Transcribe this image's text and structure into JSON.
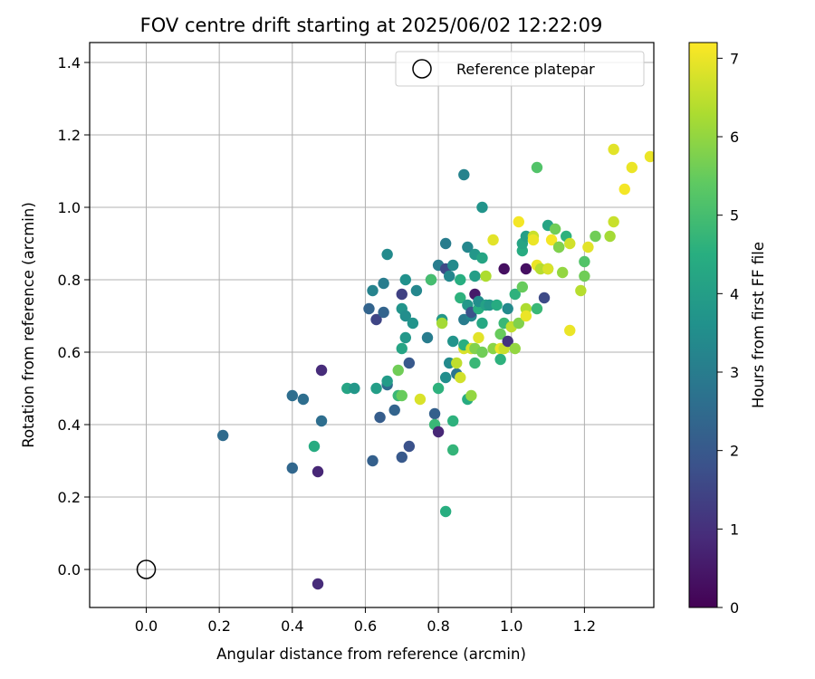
{
  "chart_data": {
    "type": "scatter",
    "title": "FOV centre drift starting at 2025/06/02 12:22:09",
    "xlabel": "Angular distance from reference (arcmin)",
    "ylabel": "Rotation from reference (arcmin)",
    "xlim": [
      -0.155,
      1.39
    ],
    "ylim": [
      -0.105,
      1.455
    ],
    "xticks": [
      "0.0",
      "0.2",
      "0.4",
      "0.6",
      "0.8",
      "1.0",
      "1.2"
    ],
    "xtick_values": [
      0,
      0.2,
      0.4,
      0.6,
      0.8,
      1.0,
      1.2
    ],
    "yticks": [
      "0.0",
      "0.2",
      "0.4",
      "0.6",
      "0.8",
      "1.0",
      "1.2",
      "1.4"
    ],
    "ytick_values": [
      0,
      0.2,
      0.4,
      0.6,
      0.8,
      1.0,
      1.2,
      1.4
    ],
    "grid": true,
    "legend": {
      "position": "top-right",
      "label": "Reference platepar"
    },
    "reference_point": {
      "x": 0.0,
      "y": 0.0
    },
    "colorbar": {
      "label": "Hours from first FF file",
      "colormap": "viridis",
      "range": [
        0,
        7.2
      ],
      "ticks": [
        "0",
        "1",
        "2",
        "3",
        "4",
        "5",
        "6",
        "7"
      ],
      "tick_values": [
        0,
        1,
        2,
        3,
        4,
        5,
        6,
        7
      ]
    },
    "points": [
      [
        0.21,
        0.37,
        2.5
      ],
      [
        0.4,
        0.48,
        2.6
      ],
      [
        0.43,
        0.47,
        2.6
      ],
      [
        0.4,
        0.28,
        2.4
      ],
      [
        0.46,
        0.34,
        4.4
      ],
      [
        0.47,
        0.27,
        0.8
      ],
      [
        0.48,
        0.55,
        0.9
      ],
      [
        0.48,
        0.41,
        2.6
      ],
      [
        0.47,
        -0.04,
        0.9
      ],
      [
        0.55,
        0.5,
        4.2
      ],
      [
        0.57,
        0.5,
        3.8
      ],
      [
        0.61,
        0.72,
        2.3
      ],
      [
        0.62,
        0.77,
        3.2
      ],
      [
        0.62,
        0.3,
        2.2
      ],
      [
        0.63,
        0.69,
        1.5
      ],
      [
        0.63,
        0.5,
        4.0
      ],
      [
        0.64,
        0.42,
        2.1
      ],
      [
        0.65,
        0.71,
        2.3
      ],
      [
        0.65,
        0.79,
        3.0
      ],
      [
        0.66,
        0.51,
        2.5
      ],
      [
        0.66,
        0.52,
        3.9
      ],
      [
        0.66,
        0.87,
        3.4
      ],
      [
        0.68,
        0.44,
        2.3
      ],
      [
        0.69,
        0.55,
        5.6
      ],
      [
        0.69,
        0.48,
        4.8
      ],
      [
        0.7,
        0.31,
        2.0
      ],
      [
        0.7,
        0.72,
        3.7
      ],
      [
        0.7,
        0.48,
        5.5
      ],
      [
        0.7,
        0.61,
        4.2
      ],
      [
        0.7,
        0.76,
        1.4
      ],
      [
        0.71,
        0.8,
        3.6
      ],
      [
        0.71,
        0.64,
        3.8
      ],
      [
        0.71,
        0.7,
        3.5
      ],
      [
        0.72,
        0.57,
        2.0
      ],
      [
        0.72,
        0.34,
        1.8
      ],
      [
        0.73,
        0.68,
        3.7
      ],
      [
        0.74,
        0.77,
        3.3
      ],
      [
        0.75,
        0.47,
        6.8
      ],
      [
        0.77,
        0.64,
        3.0
      ],
      [
        0.78,
        0.8,
        2.6
      ],
      [
        0.78,
        0.8,
        5.0
      ],
      [
        0.79,
        0.43,
        2.2
      ],
      [
        0.79,
        0.4,
        4.8
      ],
      [
        0.8,
        0.38,
        0.8
      ],
      [
        0.8,
        0.84,
        3.0
      ],
      [
        0.8,
        0.5,
        4.6
      ],
      [
        0.81,
        0.69,
        3.8
      ],
      [
        0.81,
        0.68,
        6.2
      ],
      [
        0.82,
        0.53,
        3.5
      ],
      [
        0.82,
        0.16,
        4.5
      ],
      [
        0.82,
        0.9,
        3.0
      ],
      [
        0.82,
        0.83,
        1.6
      ],
      [
        0.83,
        0.81,
        3.3
      ],
      [
        0.83,
        0.57,
        3.4
      ],
      [
        0.84,
        0.84,
        3.4
      ],
      [
        0.84,
        0.41,
        4.6
      ],
      [
        0.84,
        0.63,
        3.7
      ],
      [
        0.84,
        0.33,
        4.7
      ],
      [
        0.85,
        0.54,
        2.8
      ],
      [
        0.85,
        0.57,
        6.5
      ],
      [
        0.86,
        0.53,
        6.7
      ],
      [
        0.86,
        0.75,
        4.6
      ],
      [
        0.86,
        0.8,
        4.5
      ],
      [
        0.87,
        0.61,
        6.8
      ],
      [
        0.87,
        0.62,
        4.5
      ],
      [
        0.87,
        0.69,
        3.0
      ],
      [
        0.87,
        1.09,
        3.2
      ],
      [
        0.88,
        0.89,
        3.3
      ],
      [
        0.88,
        0.73,
        3.8
      ],
      [
        0.88,
        0.47,
        4.4
      ],
      [
        0.89,
        0.7,
        3.3
      ],
      [
        0.89,
        0.71,
        1.8
      ],
      [
        0.89,
        0.61,
        6.7
      ],
      [
        0.89,
        0.48,
        6.0
      ],
      [
        0.9,
        0.61,
        5.8
      ],
      [
        0.9,
        0.76,
        0.5
      ],
      [
        0.9,
        0.57,
        4.8
      ],
      [
        0.9,
        0.81,
        4.0
      ],
      [
        0.9,
        0.87,
        3.8
      ],
      [
        0.91,
        0.64,
        6.9
      ],
      [
        0.91,
        0.72,
        4.5
      ],
      [
        0.91,
        0.74,
        3.5
      ],
      [
        0.92,
        0.68,
        4.3
      ],
      [
        0.92,
        0.6,
        5.6
      ],
      [
        0.92,
        0.86,
        4.2
      ],
      [
        0.92,
        1.0,
        3.7
      ],
      [
        0.93,
        0.73,
        4.1
      ],
      [
        0.93,
        0.81,
        6.3
      ],
      [
        0.94,
        0.73,
        3.8
      ],
      [
        0.95,
        0.91,
        6.9
      ],
      [
        0.95,
        0.61,
        5.9
      ],
      [
        0.96,
        0.73,
        4.4
      ],
      [
        0.97,
        0.61,
        7.0
      ],
      [
        0.97,
        0.65,
        5.5
      ],
      [
        0.97,
        0.58,
        4.6
      ],
      [
        0.98,
        0.68,
        4.8
      ],
      [
        0.98,
        0.83,
        0.3
      ],
      [
        0.98,
        0.61,
        6.6
      ],
      [
        0.99,
        0.72,
        3.4
      ],
      [
        0.99,
        0.63,
        1.1
      ],
      [
        1.0,
        0.67,
        6.5
      ],
      [
        1.01,
        0.76,
        4.6
      ],
      [
        1.01,
        0.61,
        6.0
      ],
      [
        1.02,
        0.96,
        7.1
      ],
      [
        1.02,
        0.68,
        5.8
      ],
      [
        1.03,
        0.78,
        5.5
      ],
      [
        1.03,
        0.88,
        4.4
      ],
      [
        1.03,
        0.9,
        4.2
      ],
      [
        1.04,
        0.83,
        0.3
      ],
      [
        1.04,
        0.92,
        4.0
      ],
      [
        1.04,
        0.72,
        6.3
      ],
      [
        1.04,
        0.7,
        7.0
      ],
      [
        1.06,
        0.92,
        6.6
      ],
      [
        1.06,
        0.91,
        7.0
      ],
      [
        1.07,
        0.72,
        4.8
      ],
      [
        1.07,
        0.84,
        7.0
      ],
      [
        1.07,
        1.11,
        5.2
      ],
      [
        1.08,
        0.83,
        6.4
      ],
      [
        1.09,
        0.75,
        1.6
      ],
      [
        1.1,
        0.83,
        5.2
      ],
      [
        1.1,
        0.83,
        6.8
      ],
      [
        1.1,
        0.95,
        4.2
      ],
      [
        1.11,
        0.91,
        7.1
      ],
      [
        1.12,
        0.94,
        5.6
      ],
      [
        1.13,
        0.89,
        5.0
      ],
      [
        1.13,
        0.89,
        5.8
      ],
      [
        1.14,
        0.82,
        6.0
      ],
      [
        1.15,
        0.92,
        4.6
      ],
      [
        1.16,
        0.66,
        7.0
      ],
      [
        1.16,
        0.9,
        6.7
      ],
      [
        1.19,
        0.77,
        6.4
      ],
      [
        1.2,
        0.85,
        5.2
      ],
      [
        1.2,
        0.81,
        5.6
      ],
      [
        1.21,
        0.89,
        6.9
      ],
      [
        1.23,
        0.92,
        5.6
      ],
      [
        1.27,
        0.92,
        6.2
      ],
      [
        1.28,
        0.96,
        6.6
      ],
      [
        1.28,
        1.16,
        6.9
      ],
      [
        1.31,
        1.05,
        7.1
      ],
      [
        1.33,
        1.11,
        7.0
      ],
      [
        1.38,
        1.14,
        7.0
      ]
    ]
  }
}
